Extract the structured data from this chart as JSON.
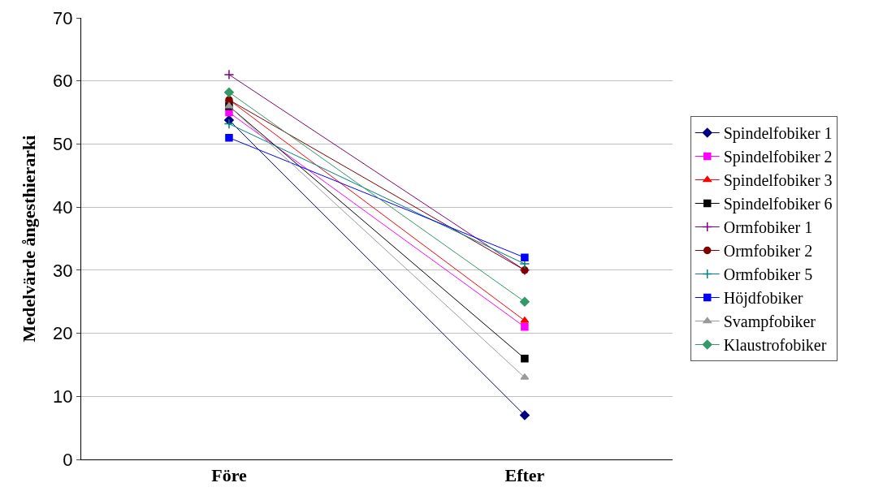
{
  "chart_data": {
    "type": "line",
    "ylabel": "Medelvärde ångesthierarki",
    "categories": [
      "Före",
      "Efter"
    ],
    "ylim": [
      0,
      70
    ],
    "yticks": [
      0,
      10,
      20,
      30,
      40,
      50,
      60,
      70
    ],
    "grid": "y",
    "legend": "right",
    "series": [
      {
        "name": "Spindelfobiker 1",
        "color": "#000080",
        "marker": "diamond",
        "values": [
          53.8,
          7
        ]
      },
      {
        "name": "Spindelfobiker 2",
        "color": "#ff00ff",
        "marker": "square",
        "values": [
          55,
          21
        ]
      },
      {
        "name": "Spindelfobiker 3",
        "color": "#ff0000",
        "marker": "triangle",
        "values": [
          57,
          22
        ]
      },
      {
        "name": "Spindelfobiker 6",
        "color": "#000000",
        "marker": "square",
        "values": [
          56,
          16
        ]
      },
      {
        "name": "Ormfobiker 1",
        "color": "#800080",
        "marker": "cross",
        "values": [
          61,
          30
        ]
      },
      {
        "name": "Ormfobiker 2",
        "color": "#800000",
        "marker": "circle",
        "values": [
          57,
          30
        ]
      },
      {
        "name": "Ormfobiker 5",
        "color": "#008080",
        "marker": "cross",
        "values": [
          53.2,
          31
        ]
      },
      {
        "name": "Höjdfobiker",
        "color": "#0000ff",
        "marker": "square",
        "values": [
          51,
          32
        ]
      },
      {
        "name": "Svampfobiker",
        "color": "#999999",
        "marker": "triangle",
        "values": [
          56,
          13
        ]
      },
      {
        "name": "Klaustrofobiker",
        "color": "#339966",
        "marker": "diamond",
        "values": [
          58.2,
          25
        ]
      }
    ]
  }
}
